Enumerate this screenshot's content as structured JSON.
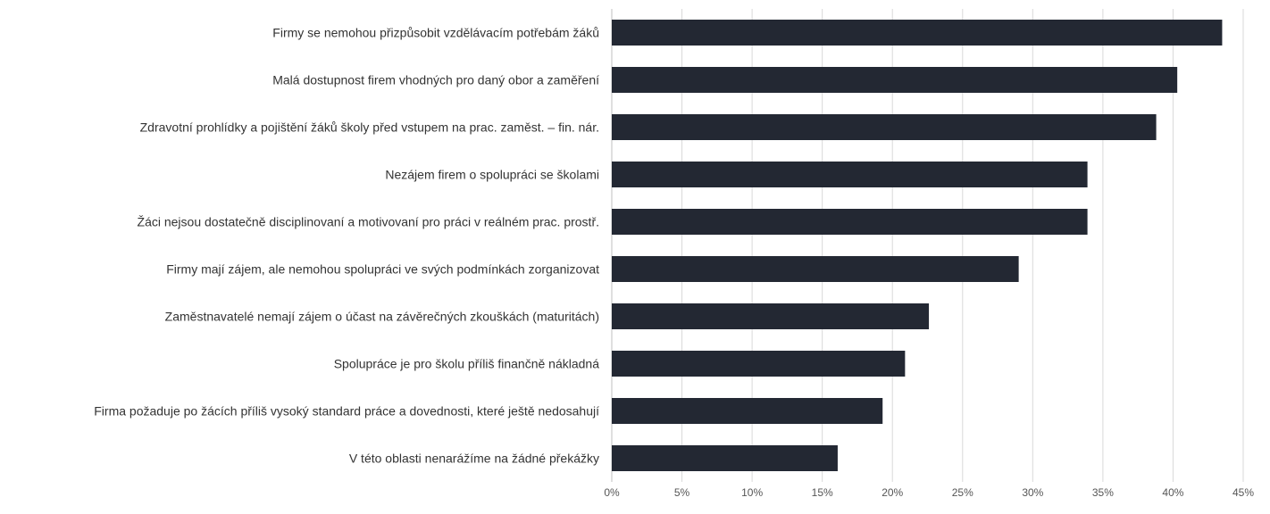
{
  "chart_data": {
    "type": "bar",
    "orientation": "horizontal",
    "categories": [
      "Firmy se nemohou přizpůsobit vzdělávacím potřebám žáků",
      "Malá dostupnost firem vhodných pro daný obor a zaměření",
      "Zdravotní prohlídky a pojištění žáků školy před vstupem na prac. zaměst. – fin. nár.",
      "Nezájem firem o spolupráci se školami",
      "Žáci nejsou dostatečně disciplinovaní a motivovaní pro práci v reálném prac. prostř.",
      "Firmy mají zájem, ale nemohou spolupráci ve svých podmínkách zorganizovat",
      "Zaměstnavatelé nemají zájem o účast na závěrečných zkouškách (maturitách)",
      "Spolupráce je pro školu příliš finančně nákladná",
      "Firma požaduje po žácích příliš vysoký standard práce a dovednosti, které ještě nedosahují",
      "V této oblasti nenarážíme na žádné překážky"
    ],
    "values": [
      43.5,
      40.3,
      38.8,
      33.9,
      33.9,
      29.0,
      22.6,
      20.9,
      19.3,
      16.1
    ],
    "xlim": [
      0,
      45
    ],
    "ticks": [
      "0%",
      "5%",
      "10%",
      "15%",
      "20%",
      "25%",
      "30%",
      "35%",
      "40%",
      "45%"
    ],
    "tick_values": [
      0,
      5,
      10,
      15,
      20,
      25,
      30,
      35,
      40,
      45
    ],
    "grid": true,
    "legend": "none",
    "bar_color": "#232833",
    "grid_color": "#d9d9d9"
  }
}
